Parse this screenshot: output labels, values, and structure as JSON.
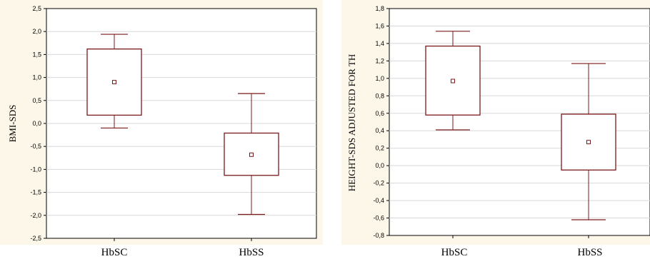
{
  "chart_data": [
    {
      "type": "box",
      "ylabel": "BMI-SDS",
      "categories": [
        "HbSC",
        "HbSS"
      ],
      "ylim": [
        -2.5,
        2.5
      ],
      "yticks": [
        2.5,
        2.0,
        1.5,
        1.0,
        0.5,
        0.0,
        -0.5,
        -1.0,
        -1.5,
        -2.0,
        -2.5
      ],
      "ytick_labels": [
        "2,5",
        "2,0",
        "1,5",
        "1,0",
        "0,5",
        "0,0",
        "-0,5",
        "-1,0",
        "-1,5",
        "-2,0",
        "-2,5"
      ],
      "grid": true,
      "boxes": [
        {
          "category": "HbSC",
          "whisker_low": -0.1,
          "box_low": 0.18,
          "mean": 0.9,
          "box_high": 1.62,
          "whisker_high": 1.94
        },
        {
          "category": "HbSS",
          "whisker_low": -1.98,
          "box_low": -1.13,
          "mean": -0.68,
          "box_high": -0.21,
          "whisker_high": 0.65
        }
      ],
      "colors": {
        "line": "#7a1a1a",
        "frame_bg": "#fdf7ea",
        "plot_bg": "#ffffff",
        "grid": "#d8d8d8"
      }
    },
    {
      "type": "box",
      "ylabel": "HEIGHT-SDS ADJUSTED FOR TH",
      "categories": [
        "HbSC",
        "HbSS"
      ],
      "ylim": [
        -0.8,
        1.8
      ],
      "yticks": [
        1.8,
        1.6,
        1.4,
        1.2,
        1.0,
        0.8,
        0.6,
        0.4,
        0.2,
        0.0,
        -0.2,
        -0.4,
        -0.6,
        -0.8
      ],
      "ytick_labels": [
        "1,8",
        "1,6",
        "1,4",
        "1,2",
        "1,0",
        "0,8",
        "0,6",
        "0,4",
        "0,2",
        "0,0",
        "-0,2",
        "-0,4",
        "-0,6",
        "-0,8"
      ],
      "grid": true,
      "boxes": [
        {
          "category": "HbSC",
          "whisker_low": 0.41,
          "box_low": 0.58,
          "mean": 0.97,
          "box_high": 1.37,
          "whisker_high": 1.54
        },
        {
          "category": "HbSS",
          "whisker_low": -0.62,
          "box_low": -0.05,
          "mean": 0.27,
          "box_high": 0.59,
          "whisker_high": 1.17
        }
      ],
      "colors": {
        "line": "#7a1a1a",
        "frame_bg": "#fdf7ea",
        "plot_bg": "#ffffff",
        "grid": "#d8d8d8"
      }
    }
  ]
}
